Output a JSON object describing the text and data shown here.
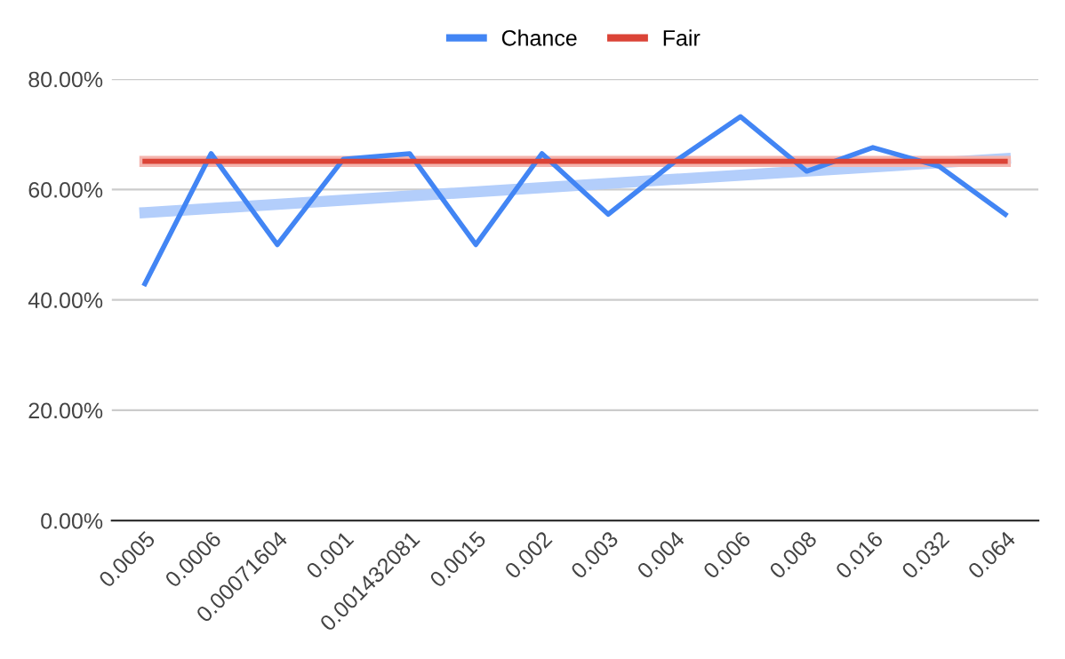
{
  "chart_data": {
    "type": "line",
    "categories": [
      "0.0005",
      "0.0006",
      "0.00071604",
      "0.001",
      "0.001432081",
      "0.0015",
      "0.002",
      "0.003",
      "0.004",
      "0.006",
      "0.008",
      "0.016",
      "0.032",
      "0.064"
    ],
    "series": [
      {
        "name": "Chance",
        "color": "#4285f4",
        "values": [
          42.9,
          66.5,
          50,
          65.5,
          66.5,
          50,
          66.5,
          55.5,
          65,
          73.2,
          63.3,
          67.6,
          64.2,
          55.5
        ]
      },
      {
        "name": "Fair",
        "color": "#db4437",
        "values": [
          65.1,
          65.1,
          65.1,
          65.1,
          65.1,
          65.1,
          65.1,
          65.1,
          65.1,
          65.1,
          65.1,
          65.1,
          65.1,
          65.1
        ]
      },
      {
        "color": "#b3cefb",
        "values": [
          55.8,
          null,
          null,
          null,
          null,
          null,
          null,
          null,
          null,
          null,
          null,
          null,
          null,
          65.6
        ]
      },
      {
        "color": "#f4b4ae",
        "values": [
          65.1,
          null,
          null,
          null,
          null,
          null,
          null,
          null,
          null,
          null,
          null,
          null,
          null,
          65.1
        ]
      }
    ],
    "ylim": [
      0,
      80
    ],
    "yticks": [
      {
        "value": 0,
        "label": "0.00%"
      },
      {
        "value": 20,
        "label": "20.00%"
      },
      {
        "value": 40,
        "label": "40.00%"
      },
      {
        "value": 60,
        "label": "60.00%"
      },
      {
        "value": 80,
        "label": "80.00%"
      }
    ],
    "grid": "y",
    "legend": "top"
  }
}
